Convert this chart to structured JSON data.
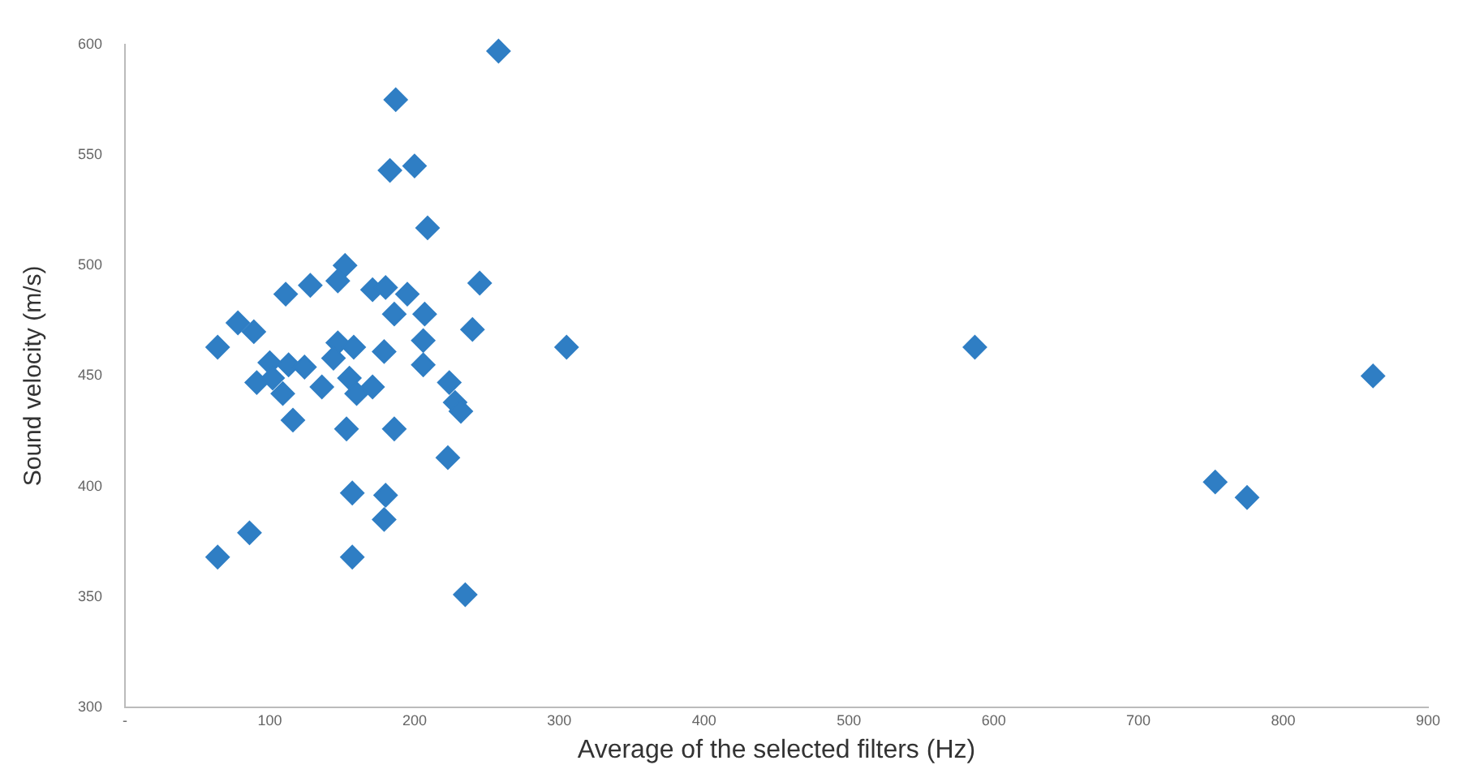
{
  "chart_data": {
    "type": "scatter",
    "xlabel": "Average of the selected filters (Hz)",
    "ylabel": "Sound velocity (m/s)",
    "x": [
      258,
      187,
      183,
      200,
      209,
      152,
      245,
      111,
      128,
      147,
      171,
      180,
      195,
      186,
      207,
      78,
      89,
      240,
      64,
      206,
      147,
      158,
      179,
      144,
      206,
      100,
      113,
      124,
      91,
      102,
      136,
      155,
      171,
      224,
      109,
      160,
      228,
      232,
      116,
      153,
      186,
      223,
      157,
      180,
      179,
      86,
      64,
      157,
      235,
      305,
      587,
      862,
      753,
      775
    ],
    "series": [
      {
        "color": "#2f7ec4",
        "values": [
          597,
          575,
          543,
          545,
          517,
          500,
          492,
          487,
          491,
          493,
          489,
          490,
          487,
          478,
          478,
          474,
          470,
          471,
          463,
          466,
          465,
          463,
          461,
          458,
          455,
          456,
          455,
          454,
          447,
          449,
          445,
          449,
          445,
          447,
          442,
          442,
          438,
          434,
          430,
          426,
          426,
          413,
          397,
          396,
          385,
          379,
          368,
          368,
          351,
          463,
          463,
          450,
          402,
          395
        ]
      }
    ],
    "xlim": [
      0,
      900
    ],
    "xticks": [
      {
        "value": 0,
        "label": "-"
      },
      100,
      200,
      300,
      400,
      500,
      600,
      700,
      800,
      900
    ],
    "ylim": [
      300,
      600
    ],
    "yticks": [
      300,
      350,
      400,
      450,
      500,
      550,
      600
    ],
    "grid": false,
    "legend": false,
    "marker": "diamond"
  }
}
